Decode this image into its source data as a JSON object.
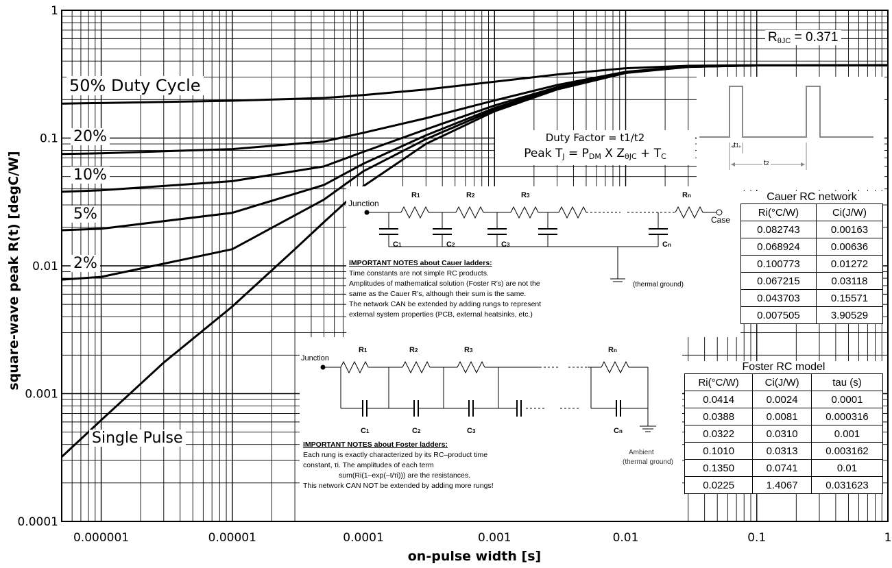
{
  "chart_data": {
    "type": "line",
    "xlabel": "on-pulse width [s]",
    "ylabel": "square-wave peak R(t) [degC/W]",
    "x_scale": "log",
    "y_scale": "log",
    "xlim": [
      5e-07,
      1
    ],
    "ylim": [
      0.0001,
      1
    ],
    "x_ticks": [
      "0.000001",
      "0.00001",
      "0.0001",
      "0.001",
      "0.01",
      "0.1",
      "1"
    ],
    "y_ticks": [
      "0.0001",
      "0.001",
      "0.01",
      "0.1",
      "1"
    ],
    "grid": true,
    "series": [
      {
        "name": "50% Duty Cycle",
        "x": [
          5e-07,
          1e-06,
          1e-05,
          5e-05,
          0.0001,
          0.0003,
          0.001,
          0.003,
          0.01,
          0.03,
          0.1,
          1
        ],
        "y": [
          0.186,
          0.188,
          0.196,
          0.206,
          0.217,
          0.24,
          0.276,
          0.314,
          0.352,
          0.368,
          0.371,
          0.371
        ]
      },
      {
        "name": "20%",
        "x": [
          5e-07,
          1e-06,
          1e-05,
          5e-05,
          0.0001,
          0.0003,
          0.001,
          0.003,
          0.01,
          0.03,
          0.1,
          1
        ],
        "y": [
          0.075,
          0.076,
          0.082,
          0.094,
          0.11,
          0.143,
          0.197,
          0.26,
          0.33,
          0.363,
          0.37,
          0.371
        ]
      },
      {
        "name": "10%",
        "x": [
          5e-07,
          1e-06,
          1e-05,
          5e-05,
          0.0001,
          0.0003,
          0.001,
          0.003,
          0.01,
          0.03,
          0.1,
          1
        ],
        "y": [
          0.038,
          0.039,
          0.046,
          0.06,
          0.078,
          0.117,
          0.18,
          0.25,
          0.327,
          0.362,
          0.37,
          0.371
        ]
      },
      {
        "name": "5%",
        "x": [
          5e-07,
          1e-06,
          1e-05,
          5e-05,
          0.0001,
          0.0003,
          0.001,
          0.003,
          0.01,
          0.03,
          0.1,
          1
        ],
        "y": [
          0.019,
          0.0195,
          0.026,
          0.043,
          0.063,
          0.105,
          0.172,
          0.245,
          0.325,
          0.361,
          0.37,
          0.371
        ]
      },
      {
        "name": "2%",
        "x": [
          5e-07,
          1e-06,
          1e-05,
          5e-05,
          0.0001,
          0.0003,
          0.001,
          0.003,
          0.01,
          0.03,
          0.1,
          1
        ],
        "y": [
          0.0078,
          0.0082,
          0.0135,
          0.033,
          0.055,
          0.098,
          0.167,
          0.242,
          0.324,
          0.361,
          0.37,
          0.371
        ]
      },
      {
        "name": "Single Pulse",
        "x": [
          5e-07,
          1e-06,
          3e-06,
          1e-05,
          3e-05,
          5e-05,
          0.0001,
          0.0003,
          0.001,
          0.003,
          0.01,
          0.03,
          0.1,
          1
        ],
        "y": [
          0.00032,
          0.00062,
          0.00175,
          0.0048,
          0.0135,
          0.022,
          0.042,
          0.09,
          0.162,
          0.24,
          0.323,
          0.36,
          0.37,
          0.371
        ]
      }
    ],
    "annotations": {
      "r_theta": "R",
      "r_theta_sub": "θJC",
      "r_theta_value": " = 0.371",
      "duty_factor": "Duty Factor = t1/t2",
      "peak_prefix": "Peak T",
      "peak_sub_j": "J",
      "peak_eq": " = P",
      "peak_sub_dm": "DM",
      "peak_x": " X Z",
      "peak_sub_theta": "θJC",
      "peak_plus": " + T",
      "peak_sub_c": "C",
      "t1": "t",
      "t1_sub": "1",
      "t2": "t",
      "t2_sub": "2"
    }
  },
  "cauer": {
    "title": "Cauer RC network",
    "headers": [
      "Ri(°C/W)",
      "Ci(J/W)"
    ],
    "rows": [
      [
        "0.082743",
        "0.00163"
      ],
      [
        "0.068924",
        "0.00636"
      ],
      [
        "0.100773",
        "0.01272"
      ],
      [
        "0.067215",
        "0.03118"
      ],
      [
        "0.043703",
        "0.15571"
      ],
      [
        "0.007505",
        "3.90529"
      ]
    ],
    "circuit": {
      "junction": "Junction",
      "case": "Case",
      "ground": "(thermal ground)"
    },
    "notes_title": "IMPORTANT NOTES about Cauer ladders:",
    "notes": [
      "Time constants are not simple RC products.",
      "Amplitudes of mathematical solution (Foster R's) are not the",
      "same as the Cauer R's, although their sum is the same.",
      "The network CAN be extended by adding rungs to represent",
      "external system properties (PCB, external heatsinks, etc.)"
    ]
  },
  "foster": {
    "title": "Foster RC model",
    "headers": [
      "Ri(°C/W)",
      "Ci(J/W)",
      "tau (s)"
    ],
    "rows": [
      [
        "0.0414",
        "0.0024",
        "0.0001"
      ],
      [
        "0.0388",
        "0.0081",
        "0.000316"
      ],
      [
        "0.0322",
        "0.0310",
        "0.001"
      ],
      [
        "0.1010",
        "0.0313",
        "0.003162"
      ],
      [
        "0.1350",
        "0.0741",
        "0.01"
      ],
      [
        "0.0225",
        "1.4067",
        "0.031623"
      ]
    ],
    "circuit": {
      "junction": "Junction",
      "ambient": "Ambient",
      "ground": "(thermal ground)"
    },
    "notes_title": "IMPORTANT NOTES about Foster ladders:",
    "notes": [
      "Each rung is exactly characterized by its RC–product time",
      "constant, τi. The amplitudes of each term",
      "sum(Ri(1–exp(–t/τi))) are the resistances.",
      "This network CAN NOT be extended by adding more rungs!"
    ]
  }
}
